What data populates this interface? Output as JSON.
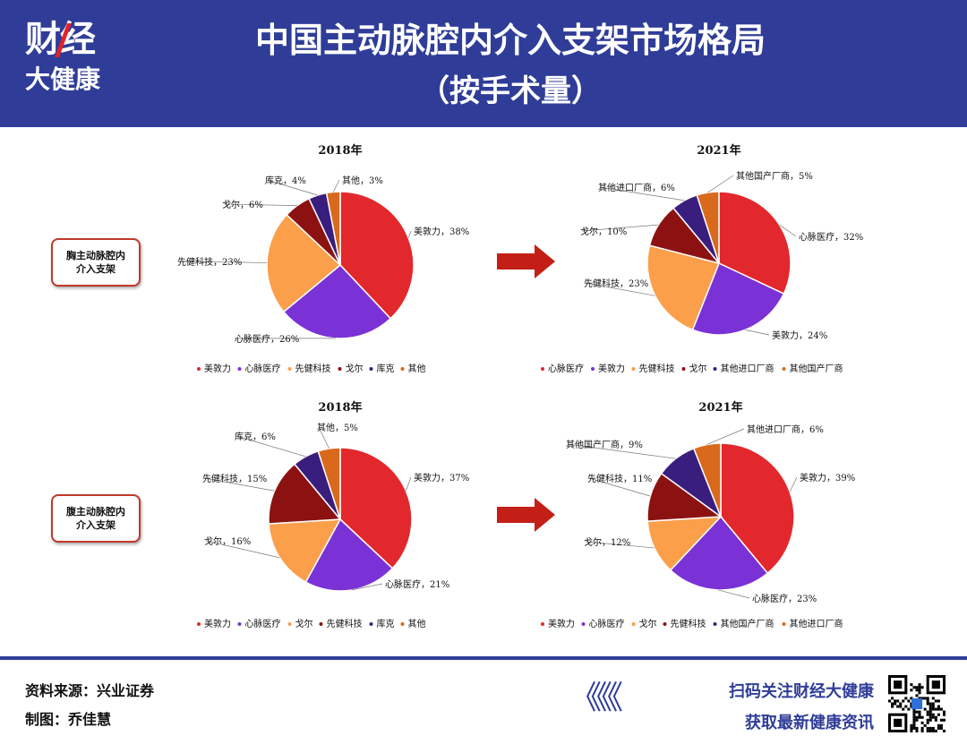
{
  "header": {
    "logo_line1": "财经",
    "logo_line2": "大健康",
    "title": "中国主动脉腔内介入支架市场格局",
    "subtitle": "（按手术量）"
  },
  "row_labels": [
    "胸主动脉腔内介入支架",
    "腹主动脉腔内介入支架"
  ],
  "footer": {
    "source": "资料来源：兴业证券",
    "author": "制图：乔佳慧",
    "chevrons": "《《《",
    "scan_line1": "扫码关注财经大健康",
    "scan_line2": "获取最新健康资讯"
  },
  "colors": {
    "header_bg": "#2f3d98",
    "red": "#e2282c",
    "purple": "#7a32d6",
    "orange": "#fb9f4a",
    "darkred": "#8c1212",
    "navy": "#3a1e7e",
    "amber": "#d9691c",
    "arrow": "#c31f16"
  },
  "chart_data": [
    {
      "type": "pie",
      "title": "2018年",
      "group": "胸主动脉腔内介入支架",
      "slices": [
        {
          "name": "美敦力",
          "value": 38,
          "color": "#e2282c",
          "label": "美敦力，38%"
        },
        {
          "name": "心脉医疗",
          "value": 26,
          "color": "#7a32d6",
          "label": "心脉医疗，26%"
        },
        {
          "name": "先健科技",
          "value": 23,
          "color": "#fb9f4a",
          "label": "先健科技，23%"
        },
        {
          "name": "戈尔",
          "value": 6,
          "color": "#8c1212",
          "label": "戈尔，6%"
        },
        {
          "name": "库克",
          "value": 4,
          "color": "#3a1e7e",
          "label": "库克，4%"
        },
        {
          "name": "其他",
          "value": 3,
          "color": "#d9691c",
          "label": "其他，3%"
        }
      ]
    },
    {
      "type": "pie",
      "title": "2021年",
      "group": "胸主动脉腔内介入支架",
      "slices": [
        {
          "name": "心脉医疗",
          "value": 32,
          "color": "#e2282c",
          "label": "心脉医疗，32%"
        },
        {
          "name": "美敦力",
          "value": 24,
          "color": "#7a32d6",
          "label": "美敦力，24%"
        },
        {
          "name": "先健科技",
          "value": 23,
          "color": "#fb9f4a",
          "label": "先健科技，23%"
        },
        {
          "name": "戈尔",
          "value": 10,
          "color": "#8c1212",
          "label": "戈尔，10%"
        },
        {
          "name": "其他进口厂商",
          "value": 6,
          "color": "#3a1e7e",
          "label": "其他进口厂商，6%"
        },
        {
          "name": "其他国产厂商",
          "value": 5,
          "color": "#d9691c",
          "label": "其他国产厂商，5%"
        }
      ]
    },
    {
      "type": "pie",
      "title": "2018年",
      "group": "腹主动脉腔内介入支架",
      "slices": [
        {
          "name": "美敦力",
          "value": 37,
          "color": "#e2282c",
          "label": "美敦力，37%"
        },
        {
          "name": "心脉医疗",
          "value": 21,
          "color": "#7a32d6",
          "label": "心脉医疗，21%"
        },
        {
          "name": "戈尔",
          "value": 16,
          "color": "#fb9f4a",
          "label": "戈尔，16%"
        },
        {
          "name": "先健科技",
          "value": 15,
          "color": "#8c1212",
          "label": "先健科技，15%"
        },
        {
          "name": "库克",
          "value": 6,
          "color": "#3a1e7e",
          "label": "库克，6%"
        },
        {
          "name": "其他",
          "value": 5,
          "color": "#d9691c",
          "label": "其他，5%"
        }
      ]
    },
    {
      "type": "pie",
      "title": "2021年",
      "group": "腹主动脉腔内介入支架",
      "slices": [
        {
          "name": "美敦力",
          "value": 39,
          "color": "#e2282c",
          "label": "美敦力，39%"
        },
        {
          "name": "心脉医疗",
          "value": 23,
          "color": "#7a32d6",
          "label": "心脉医疗，23%"
        },
        {
          "name": "戈尔",
          "value": 12,
          "color": "#fb9f4a",
          "label": "戈尔，12%"
        },
        {
          "name": "先健科技",
          "value": 11,
          "color": "#8c1212",
          "label": "先健科技，11%"
        },
        {
          "name": "其他国产厂商",
          "value": 9,
          "color": "#3a1e7e",
          "label": "其他国产厂商，9%"
        },
        {
          "name": "其他进口厂商",
          "value": 6,
          "color": "#d9691c",
          "label": "其他进口厂商，6%"
        }
      ]
    }
  ]
}
